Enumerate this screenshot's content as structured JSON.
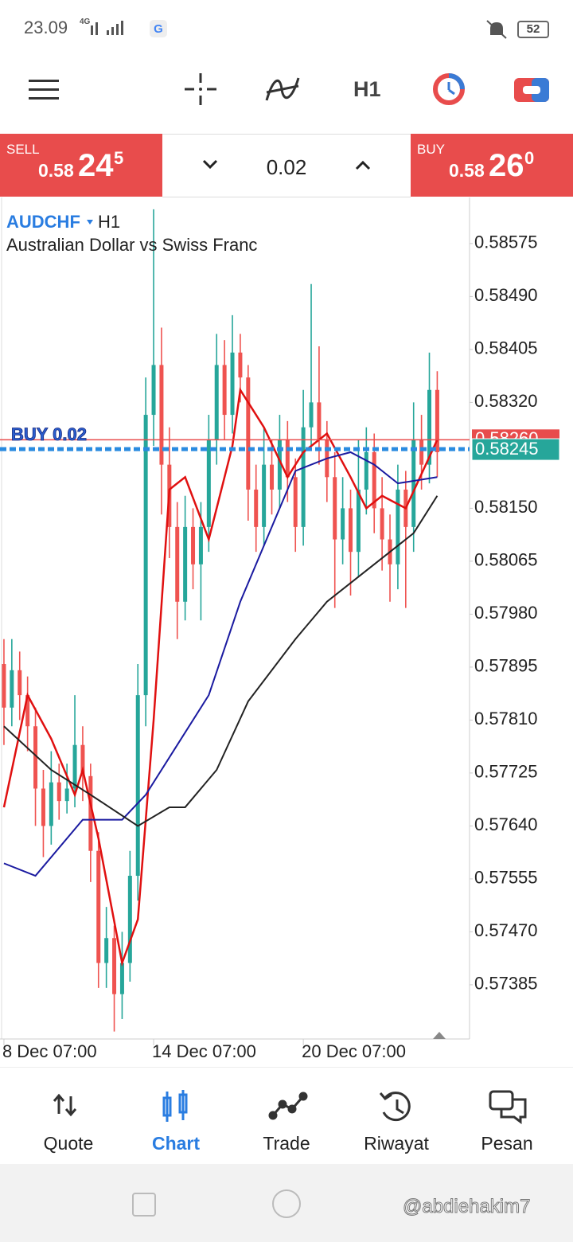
{
  "status_bar": {
    "time": "23.09",
    "network": "4G",
    "battery": "52"
  },
  "toolbar": {
    "timeframe": "H1"
  },
  "trade_panel": {
    "sell": {
      "label": "SELL",
      "prefix": "0.58",
      "pips": "24",
      "point": "5"
    },
    "volume": "0.02",
    "buy": {
      "label": "BUY",
      "prefix": "0.58",
      "pips": "26",
      "point": "0"
    }
  },
  "chart_data": {
    "type": "candlestick",
    "symbol": "AUDCHF",
    "timeframe": "H1",
    "title": "Australian Dollar vs Swiss Franc",
    "up_color": "#26a69a",
    "down_color": "#ef5350",
    "open": [
      0.579,
      0.5783,
      0.5789,
      0.5785,
      0.578,
      0.577,
      0.5764,
      0.5771,
      0.5768,
      0.577,
      0.5777,
      0.5772,
      0.576,
      0.5742,
      0.5746,
      0.5737,
      0.5742,
      0.5756,
      0.5785,
      0.583,
      0.5838,
      0.5822,
      0.5812,
      0.58,
      0.5812,
      0.5806,
      0.5812,
      0.5826,
      0.5838,
      0.583,
      0.584,
      0.5836,
      0.5818,
      0.5812,
      0.5822,
      0.5818,
      0.5826,
      0.582,
      0.5812,
      0.5828,
      0.5832,
      0.5826,
      0.582,
      0.581,
      0.5815,
      0.5808,
      0.5818,
      0.5824,
      0.5815,
      0.581,
      0.5806,
      0.5818,
      0.5812,
      0.5826,
      0.5822,
      0.5834
    ],
    "high": [
      0.5794,
      0.5794,
      0.5792,
      0.5788,
      0.5783,
      0.5773,
      0.5776,
      0.5774,
      0.5774,
      0.5785,
      0.578,
      0.5774,
      0.5763,
      0.5751,
      0.5748,
      0.5747,
      0.576,
      0.579,
      0.5836,
      0.5863,
      0.5844,
      0.5828,
      0.5816,
      0.5817,
      0.5815,
      0.5816,
      0.583,
      0.5843,
      0.5842,
      0.5846,
      0.5843,
      0.5838,
      0.5822,
      0.5828,
      0.5826,
      0.583,
      0.5829,
      0.5823,
      0.5834,
      0.5851,
      0.5841,
      0.5829,
      0.5824,
      0.582,
      0.5818,
      0.5826,
      0.5828,
      0.5827,
      0.582,
      0.5814,
      0.5822,
      0.5821,
      0.5832,
      0.583,
      0.584,
      0.5837
    ],
    "low": [
      0.5777,
      0.578,
      0.5781,
      0.5776,
      0.5764,
      0.5759,
      0.5761,
      0.5765,
      0.5766,
      0.5767,
      0.5768,
      0.5755,
      0.5738,
      0.5738,
      0.5731,
      0.5733,
      0.5739,
      0.5752,
      0.578,
      0.5825,
      0.5814,
      0.5807,
      0.5794,
      0.5797,
      0.5802,
      0.5797,
      0.5808,
      0.5822,
      0.5826,
      0.5827,
      0.5832,
      0.5813,
      0.5808,
      0.5809,
      0.5814,
      0.5815,
      0.5816,
      0.5808,
      0.5809,
      0.5825,
      0.5822,
      0.5816,
      0.5799,
      0.5806,
      0.5801,
      0.5804,
      0.5814,
      0.5811,
      0.5805,
      0.58,
      0.5802,
      0.5799,
      0.5808,
      0.5818,
      0.5819,
      0.582
    ],
    "close": [
      0.5783,
      0.5789,
      0.5785,
      0.578,
      0.577,
      0.5764,
      0.5771,
      0.5768,
      0.577,
      0.5777,
      0.5772,
      0.576,
      0.5742,
      0.5746,
      0.5737,
      0.5742,
      0.5756,
      0.5785,
      0.583,
      0.5838,
      0.5822,
      0.5812,
      0.58,
      0.5812,
      0.5806,
      0.5812,
      0.5826,
      0.5838,
      0.583,
      0.584,
      0.5836,
      0.5818,
      0.5812,
      0.5822,
      0.5818,
      0.5826,
      0.582,
      0.5812,
      0.5828,
      0.5832,
      0.5826,
      0.582,
      0.581,
      0.5815,
      0.5808,
      0.5818,
      0.5824,
      0.5815,
      0.581,
      0.5806,
      0.5818,
      0.5812,
      0.5826,
      0.5822,
      0.5834,
      0.5824
    ],
    "moving_averages": [
      {
        "color": "#e01010",
        "x": [
          0,
          3,
          6,
          9,
          10,
          12,
          15,
          17,
          19,
          21,
          23,
          26,
          29,
          30,
          33,
          36,
          38,
          41,
          44,
          46,
          48,
          51,
          55
        ],
        "values": [
          0.5767,
          0.5785,
          0.5778,
          0.5769,
          0.5773,
          0.5762,
          0.5742,
          0.5749,
          0.5781,
          0.5818,
          0.582,
          0.581,
          0.5825,
          0.5834,
          0.5828,
          0.582,
          0.5824,
          0.5827,
          0.582,
          0.5815,
          0.5817,
          0.5815,
          0.5826
        ]
      },
      {
        "color": "#1a1aa0",
        "x": [
          0,
          4,
          10,
          15,
          18,
          22,
          26,
          30,
          34,
          37,
          41,
          44,
          47,
          50,
          55
        ],
        "values": [
          0.5758,
          0.5756,
          0.5765,
          0.5765,
          0.5769,
          0.5777,
          0.5785,
          0.58,
          0.5812,
          0.5821,
          0.5823,
          0.5824,
          0.5822,
          0.5819,
          0.582
        ]
      },
      {
        "color": "#222222",
        "x": [
          0,
          6,
          11,
          17,
          21,
          23,
          27,
          31,
          37,
          41,
          45,
          49,
          52,
          55
        ],
        "values": [
          0.578,
          0.5773,
          0.5769,
          0.5764,
          0.5767,
          0.5767,
          0.5773,
          0.5784,
          0.5794,
          0.58,
          0.5804,
          0.5808,
          0.5811,
          0.5817
        ]
      }
    ],
    "ask": {
      "value": 0.5826,
      "label": "0.58260"
    },
    "bid": 0.58245,
    "order_label": "BUY 0.02",
    "xlim": [
      -0.5,
      59.1
    ],
    "xticks": [
      {
        "value": 0,
        "label": "8 Dec 07:00"
      },
      {
        "value": 19,
        "label": "14 Dec 07:00"
      },
      {
        "value": 38,
        "label": "20 Dec 07:00"
      }
    ],
    "ylim": [
      0.57298,
      0.58649
    ],
    "yticks": [
      {
        "value": 0.58575,
        "label": "0.58575"
      },
      {
        "value": 0.5849,
        "label": "0.58490"
      },
      {
        "value": 0.58405,
        "label": "0.58405"
      },
      {
        "value": 0.5832,
        "label": "0.58320"
      },
      {
        "value": 0.5815,
        "label": "0.58150"
      },
      {
        "value": 0.58065,
        "label": "0.58065"
      },
      {
        "value": 0.5798,
        "label": "0.57980"
      },
      {
        "value": 0.57895,
        "label": "0.57895"
      },
      {
        "value": 0.5781,
        "label": "0.57810"
      },
      {
        "value": 0.57725,
        "label": "0.57725"
      },
      {
        "value": 0.5764,
        "label": "0.57640"
      },
      {
        "value": 0.57555,
        "label": "0.57555"
      },
      {
        "value": 0.5747,
        "label": "0.57470"
      },
      {
        "value": 0.57385,
        "label": "0.57385"
      }
    ]
  },
  "nav": {
    "items": [
      "Quote",
      "Chart",
      "Trade",
      "Riwayat",
      "Pesan"
    ]
  },
  "watermark": "@abdiehakim7"
}
